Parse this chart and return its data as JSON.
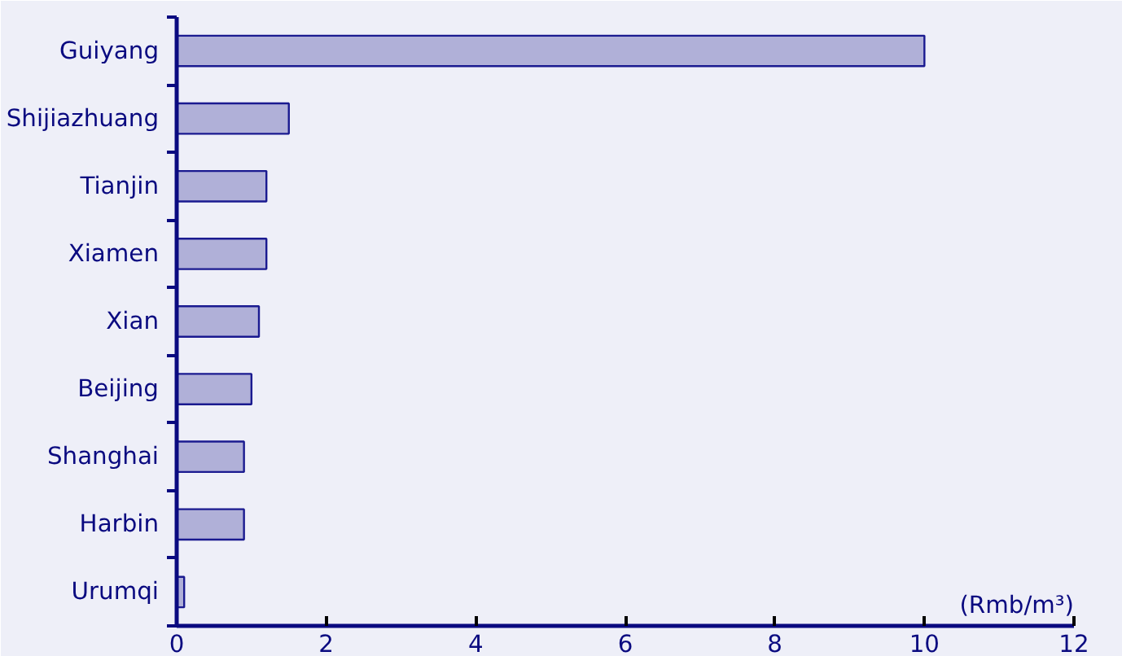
{
  "chart_data": {
    "type": "bar",
    "orientation": "horizontal",
    "xlabel": "(Rmb/m³)",
    "categories": [
      "Guiyang",
      "Shijiazhuang",
      "Tianjin",
      "Xiamen",
      "Xian",
      "Beijing",
      "Shanghai",
      "Harbin",
      "Urumqi"
    ],
    "values": [
      10,
      1.5,
      1.2,
      1.2,
      1.1,
      1.0,
      0.9,
      0.9,
      0.1
    ],
    "color": "#b0b0d8",
    "xlim": [
      0,
      12
    ],
    "xticks": [
      0,
      2,
      4,
      6,
      8,
      10,
      12
    ],
    "grid": false
  }
}
